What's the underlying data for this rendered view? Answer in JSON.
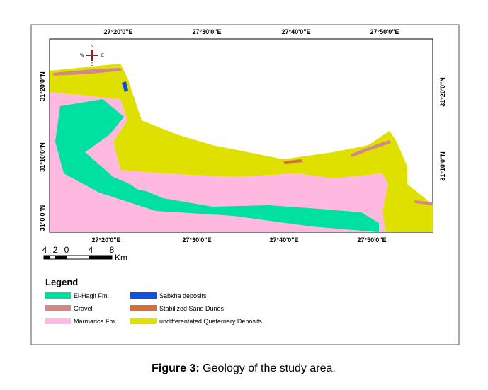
{
  "top_labels": [
    "27°20'0\"E",
    "27°30'0\"E",
    "27°40'0\"E",
    "27°50'0\"E"
  ],
  "bottom_labels": [
    "27°20'0\"E",
    "27°30'0\"E",
    "27°40'0\"E",
    "27°50'0\"E"
  ],
  "left_labels": [
    "31°20'0\"N",
    "31°10'0\"N",
    "31°0'0\"N"
  ],
  "right_labels": [
    "31°20'0\"N",
    "31°10'0\"N"
  ],
  "compass": {
    "n": "N",
    "s": "S",
    "w": "W",
    "e": "E"
  },
  "scale": {
    "ticks": [
      "4",
      "2",
      "0",
      "4",
      "8"
    ],
    "unit": "Km"
  },
  "legend": {
    "title": "Legend",
    "items": [
      "El-Hagif Fm.",
      "Gravel",
      "Marmarica Fm.",
      "Sabkha deposits",
      "Stabilized Sand Dunes",
      "undifferentated Quaternary Deposits."
    ]
  },
  "caption": {
    "label": "Figure 3:",
    "text": " Geology of the study area."
  }
}
